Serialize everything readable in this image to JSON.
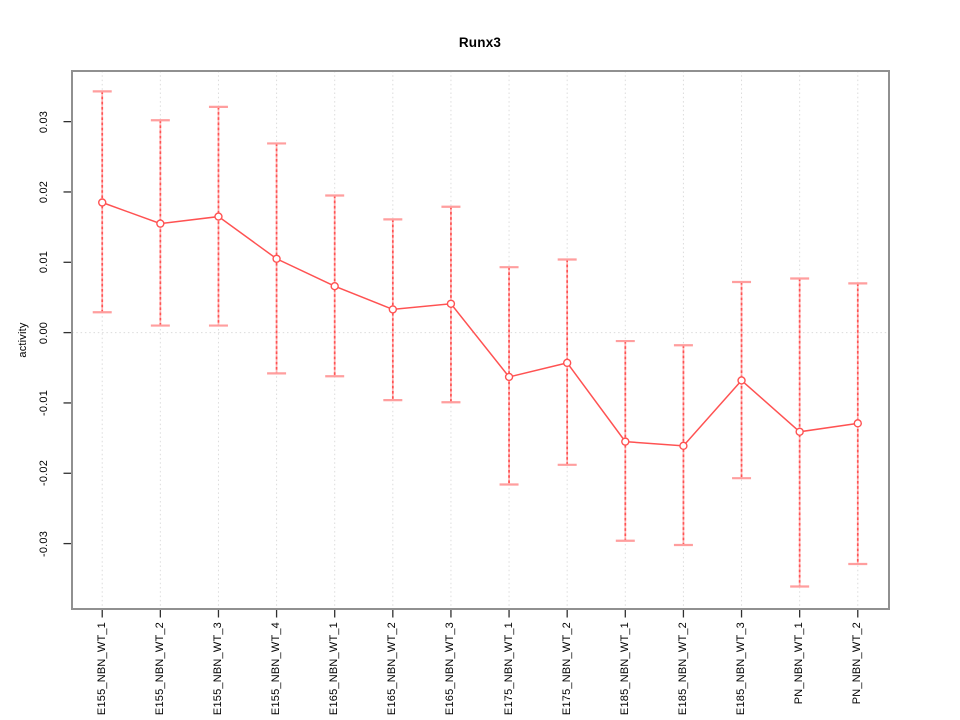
{
  "chart_data": {
    "type": "line",
    "title": "Runx3",
    "xlabel": "",
    "ylabel": "activity",
    "legend": "none",
    "grid": "dotted vertical gridline at each category; dotted horizontal line at y=0",
    "categories": [
      "E155_NBN_WT_1",
      "E155_NBN_WT_2",
      "E155_NBN_WT_3",
      "E155_NBN_WT_4",
      "E165_NBN_WT_1",
      "E165_NBN_WT_2",
      "E165_NBN_WT_3",
      "E175_NBN_WT_1",
      "E175_NBN_WT_2",
      "E185_NBN_WT_1",
      "E185_NBN_WT_2",
      "E185_NBN_WT_3",
      "PN_NBN_WT_1",
      "PN_NBN_WT_2"
    ],
    "series": [
      {
        "name": "activity",
        "values": [
          0.0185,
          0.0155,
          0.0165,
          0.0105,
          0.0066,
          0.0033,
          0.0041,
          -0.0063,
          -0.0043,
          -0.0155,
          -0.0161,
          -0.0068,
          -0.0141,
          -0.0129
        ],
        "upper": [
          0.0343,
          0.0302,
          0.0321,
          0.0269,
          0.0195,
          0.0161,
          0.0179,
          0.0093,
          0.0104,
          -0.0012,
          -0.0018,
          0.0072,
          0.0077,
          0.007
        ],
        "lower": [
          0.0029,
          0.001,
          0.001,
          -0.0058,
          -0.0062,
          -0.0096,
          -0.0099,
          -0.0216,
          -0.0188,
          -0.0296,
          -0.0302,
          -0.0207,
          -0.0361,
          -0.0329
        ]
      }
    ],
    "yticks": [
      -0.03,
      -0.02,
      -0.01,
      0.0,
      0.01,
      0.02,
      0.03
    ],
    "ylim": [
      -0.0393,
      0.0372
    ],
    "colors": {
      "line": "#ff5252",
      "point_stroke": "#ff5252",
      "point_fill": "#ffffff",
      "errorbar_cap": "#ff9e9e",
      "errorbar_stem": "#ffb3b3",
      "errorbar_dash": "#ff5252",
      "gridline": "#dcdcdc",
      "axis_box": "#909090",
      "tick": "#303030",
      "text": "#000000"
    }
  }
}
